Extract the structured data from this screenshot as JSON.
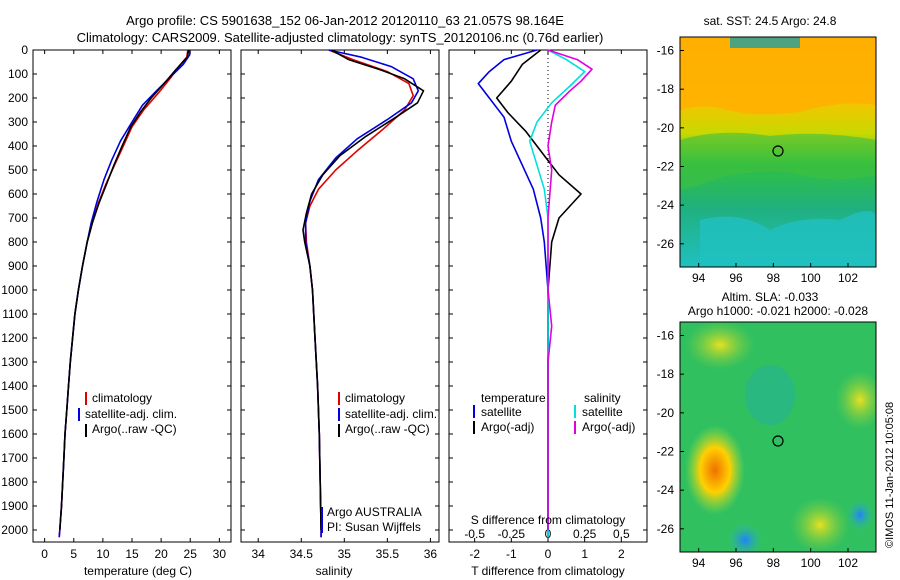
{
  "header": {
    "line1": "Argo profile: CS 5901638_152 06-Jan-2012 20120110_63 21.057S 98.164E",
    "line2": "Climatology: CARS2009. Satellite-adjusted climatology: synTS_20120106.nc (0.76d earlier)"
  },
  "watermark": "©IMOS 11-Jan-2012 10:05:08",
  "colors": {
    "climatology": "#e00000",
    "satellite": "#0000e0",
    "argo": "#000000",
    "salinity_satellite": "#00e0e0",
    "salinity_argo": "#e000e0"
  },
  "chart_data": [
    {
      "type": "line",
      "id": "temperature",
      "xlabel": "temperature (deg C)",
      "ylabel": "",
      "xlim": [
        -2,
        32
      ],
      "ylim": [
        2050,
        0
      ],
      "xticks": [
        0,
        5,
        10,
        15,
        20,
        25,
        30
      ],
      "yticks": [
        0,
        100,
        200,
        300,
        400,
        500,
        600,
        700,
        800,
        900,
        1000,
        1100,
        1200,
        1300,
        1400,
        1500,
        1600,
        1700,
        1800,
        1900,
        2000
      ],
      "legend": [
        "climatology",
        "satellite-adj. clim.",
        "Argo(..raw -QC)"
      ],
      "series": [
        {
          "name": "climatology",
          "color": "#e00000",
          "points": [
            [
              24.6,
              0
            ],
            [
              24.4,
              30
            ],
            [
              23,
              70
            ],
            [
              21.5,
              120
            ],
            [
              19.5,
              180
            ],
            [
              17,
              250
            ],
            [
              15,
              320
            ],
            [
              13.5,
              400
            ],
            [
              12,
              480
            ],
            [
              10.5,
              560
            ],
            [
              9.2,
              640
            ],
            [
              8.2,
              720
            ],
            [
              7.3,
              800
            ],
            [
              6.5,
              900
            ],
            [
              5.8,
              1000
            ],
            [
              5.2,
              1100
            ],
            [
              4.8,
              1200
            ],
            [
              4.4,
              1300
            ],
            [
              4.1,
              1400
            ],
            [
              3.8,
              1500
            ],
            [
              3.5,
              1600
            ],
            [
              3.3,
              1700
            ],
            [
              3.1,
              1800
            ],
            [
              2.9,
              1900
            ],
            [
              2.6,
              2000
            ],
            [
              2.5,
              2030
            ]
          ]
        },
        {
          "name": "satellite-adj. clim.",
          "color": "#0000e0",
          "points": [
            [
              24.8,
              0
            ],
            [
              24.9,
              20
            ],
            [
              23.8,
              60
            ],
            [
              21.7,
              110
            ],
            [
              19.2,
              170
            ],
            [
              16.8,
              230
            ],
            [
              15,
              300
            ],
            [
              13,
              380
            ],
            [
              11.5,
              460
            ],
            [
              10.2,
              540
            ],
            [
              9,
              630
            ],
            [
              8,
              720
            ],
            [
              7.3,
              800
            ],
            [
              6.5,
              900
            ],
            [
              5.8,
              1000
            ],
            [
              5.2,
              1100
            ],
            [
              4.8,
              1200
            ],
            [
              4.4,
              1300
            ],
            [
              4.1,
              1400
            ],
            [
              3.8,
              1500
            ],
            [
              3.5,
              1600
            ],
            [
              3.3,
              1700
            ],
            [
              3.1,
              1800
            ],
            [
              2.9,
              1900
            ],
            [
              2.6,
              2000
            ],
            [
              2.5,
              2030
            ]
          ]
        },
        {
          "name": "Argo(..raw -QC)",
          "color": "#000000",
          "points": [
            [
              24.7,
              0
            ],
            [
              24.5,
              30
            ],
            [
              22.6,
              80
            ],
            [
              20.5,
              140
            ],
            [
              18.3,
              200
            ],
            [
              16.4,
              260
            ],
            [
              14.8,
              320
            ],
            [
              13.3,
              400
            ],
            [
              11.9,
              480
            ],
            [
              10.6,
              560
            ],
            [
              9.3,
              640
            ],
            [
              8.2,
              720
            ],
            [
              7.3,
              800
            ],
            [
              6.5,
              900
            ],
            [
              5.8,
              1000
            ],
            [
              5.2,
              1100
            ],
            [
              4.8,
              1200
            ],
            [
              4.4,
              1300
            ],
            [
              4.1,
              1400
            ],
            [
              3.8,
              1500
            ],
            [
              3.5,
              1600
            ],
            [
              3.3,
              1700
            ],
            [
              3.1,
              1800
            ],
            [
              2.9,
              1900
            ],
            [
              2.6,
              2000
            ]
          ]
        }
      ]
    },
    {
      "type": "line",
      "id": "salinity",
      "xlabel": "salinity",
      "xlim": [
        33.8,
        36.1
      ],
      "ylim": [
        2050,
        0
      ],
      "xticks": [
        34,
        34.5,
        35,
        35.5,
        36
      ],
      "legend": [
        "climatology",
        "satellite-adj. clim.",
        "Argo(..raw -QC)"
      ],
      "annotation": [
        "Argo AUSTRALIA",
        "PI: Susan Wijffels"
      ],
      "series": [
        {
          "name": "climatology",
          "color": "#e00000",
          "points": [
            [
              34.82,
              0
            ],
            [
              35.1,
              40
            ],
            [
              35.5,
              90
            ],
            [
              35.75,
              140
            ],
            [
              35.8,
              190
            ],
            [
              35.7,
              250
            ],
            [
              35.45,
              330
            ],
            [
              35.15,
              420
            ],
            [
              34.9,
              500
            ],
            [
              34.7,
              580
            ],
            [
              34.6,
              650
            ],
            [
              34.55,
              720
            ],
            [
              34.56,
              800
            ],
            [
              34.6,
              900
            ],
            [
              34.63,
              1000
            ],
            [
              34.66,
              1200
            ],
            [
              34.69,
              1400
            ],
            [
              34.71,
              1600
            ],
            [
              34.72,
              1800
            ],
            [
              34.73,
              2000
            ],
            [
              34.73,
              2030
            ]
          ]
        },
        {
          "name": "satellite-adj. clim.",
          "color": "#0000e0",
          "points": [
            [
              34.82,
              0
            ],
            [
              35.2,
              30
            ],
            [
              35.55,
              70
            ],
            [
              35.8,
              120
            ],
            [
              35.86,
              170
            ],
            [
              35.78,
              220
            ],
            [
              35.5,
              290
            ],
            [
              35.15,
              370
            ],
            [
              34.9,
              450
            ],
            [
              34.7,
              540
            ],
            [
              34.6,
              630
            ],
            [
              34.55,
              720
            ],
            [
              34.55,
              800
            ],
            [
              34.6,
              900
            ],
            [
              34.63,
              1000
            ],
            [
              34.66,
              1200
            ],
            [
              34.69,
              1400
            ],
            [
              34.71,
              1600
            ],
            [
              34.72,
              1800
            ],
            [
              34.73,
              2000
            ],
            [
              34.73,
              2030
            ]
          ]
        },
        {
          "name": "Argo(..raw -QC)",
          "color": "#000000",
          "points": [
            [
              34.85,
              0
            ],
            [
              35.05,
              40
            ],
            [
              35.4,
              80
            ],
            [
              35.7,
              120
            ],
            [
              35.92,
              170
            ],
            [
              35.85,
              220
            ],
            [
              35.6,
              280
            ],
            [
              35.25,
              360
            ],
            [
              34.95,
              440
            ],
            [
              34.75,
              520
            ],
            [
              34.62,
              600
            ],
            [
              34.56,
              680
            ],
            [
              34.52,
              750
            ],
            [
              34.54,
              800
            ],
            [
              34.6,
              900
            ],
            [
              34.63,
              1000
            ],
            [
              34.66,
              1200
            ],
            [
              34.69,
              1400
            ],
            [
              34.71,
              1600
            ],
            [
              34.72,
              1800
            ],
            [
              34.73,
              2000
            ]
          ]
        }
      ]
    },
    {
      "type": "line",
      "id": "difference",
      "xlabel": "T difference from climatology",
      "xlabel_top": "S difference from climatology",
      "xlim": [
        -2.7,
        2.7
      ],
      "ylim": [
        2050,
        0
      ],
      "xticks": [
        -2,
        -1,
        0,
        1,
        2
      ],
      "xticks_top": [
        "-0.5",
        "-0.25",
        "0",
        "0.25",
        "0.5"
      ],
      "legend": {
        "temperature_title": "temperature",
        "temperature_items": [
          "satellite",
          "Argo(-adj)"
        ],
        "salinity_title": "salinity",
        "salinity_items": [
          "satellite",
          "Argo(-adj)"
        ]
      },
      "series": [
        {
          "name": "temperature satellite",
          "color": "#0000e0",
          "points": [
            [
              -0.3,
              0
            ],
            [
              -1.2,
              40
            ],
            [
              -1.6,
              90
            ],
            [
              -1.9,
              140
            ],
            [
              -1.6,
              200
            ],
            [
              -1.2,
              280
            ],
            [
              -1.0,
              380
            ],
            [
              -0.7,
              480
            ],
            [
              -0.4,
              580
            ],
            [
              -0.2,
              700
            ],
            [
              -0.1,
              800
            ],
            [
              0,
              1000
            ],
            [
              0,
              1500
            ],
            [
              0,
              2030
            ]
          ]
        },
        {
          "name": "temperature Argo(-adj)",
          "color": "#000000",
          "points": [
            [
              -0.2,
              0
            ],
            [
              -0.7,
              60
            ],
            [
              -1.0,
              130
            ],
            [
              -1.4,
              200
            ],
            [
              -1.1,
              260
            ],
            [
              -0.6,
              340
            ],
            [
              -0.1,
              440
            ],
            [
              0.3,
              520
            ],
            [
              0.9,
              600
            ],
            [
              0.3,
              700
            ],
            [
              0.1,
              800
            ],
            [
              0,
              1000
            ],
            [
              0,
              1500
            ],
            [
              0,
              2000
            ]
          ]
        },
        {
          "name": "salinity satellite",
          "color": "#00e0e0",
          "points": [
            [
              0,
              0
            ],
            [
              0.5,
              40
            ],
            [
              1.0,
              90
            ],
            [
              0.6,
              150
            ],
            [
              0.1,
              220
            ],
            [
              -0.3,
              300
            ],
            [
              -0.5,
              380
            ],
            [
              -0.3,
              480
            ],
            [
              -0.1,
              580
            ],
            [
              0,
              700
            ],
            [
              0,
              1000
            ],
            [
              0,
              2030
            ]
          ]
        },
        {
          "name": "salinity Argo(-adj)",
          "color": "#e000e0",
          "points": [
            [
              0,
              0
            ],
            [
              0.8,
              40
            ],
            [
              1.2,
              80
            ],
            [
              0.9,
              130
            ],
            [
              0.6,
              170
            ],
            [
              0.2,
              230
            ],
            [
              0.1,
              300
            ],
            [
              0,
              400
            ],
            [
              0.1,
              500
            ],
            [
              0,
              700
            ],
            [
              0,
              1000
            ],
            [
              0.1,
              1150
            ],
            [
              0,
              1300
            ],
            [
              0,
              2000
            ]
          ]
        }
      ]
    },
    {
      "type": "heatmap",
      "id": "sst_map",
      "title": "sat. SST: 24.5 Argo: 24.8",
      "xlim": [
        93,
        103.5
      ],
      "ylim": [
        -27.2,
        -15.3
      ],
      "xticks": [
        94,
        96,
        98,
        100,
        102
      ],
      "yticks": [
        -16,
        -18,
        -20,
        -22,
        -24,
        -26
      ],
      "marker": {
        "x": 98.164,
        "y": -21.057
      }
    },
    {
      "type": "heatmap",
      "id": "sla_map",
      "title": "Altim. SLA: -0.033",
      "subtitle": "Argo h1000: -0.021 h2000: -0.028",
      "xlim": [
        93,
        103.5
      ],
      "ylim": [
        -27.2,
        -15.3
      ],
      "xticks": [
        94,
        96,
        98,
        100,
        102
      ],
      "yticks": [
        -16,
        -18,
        -20,
        -22,
        -24,
        -26
      ],
      "marker": {
        "x": 98.164,
        "y": -21.057
      }
    }
  ]
}
